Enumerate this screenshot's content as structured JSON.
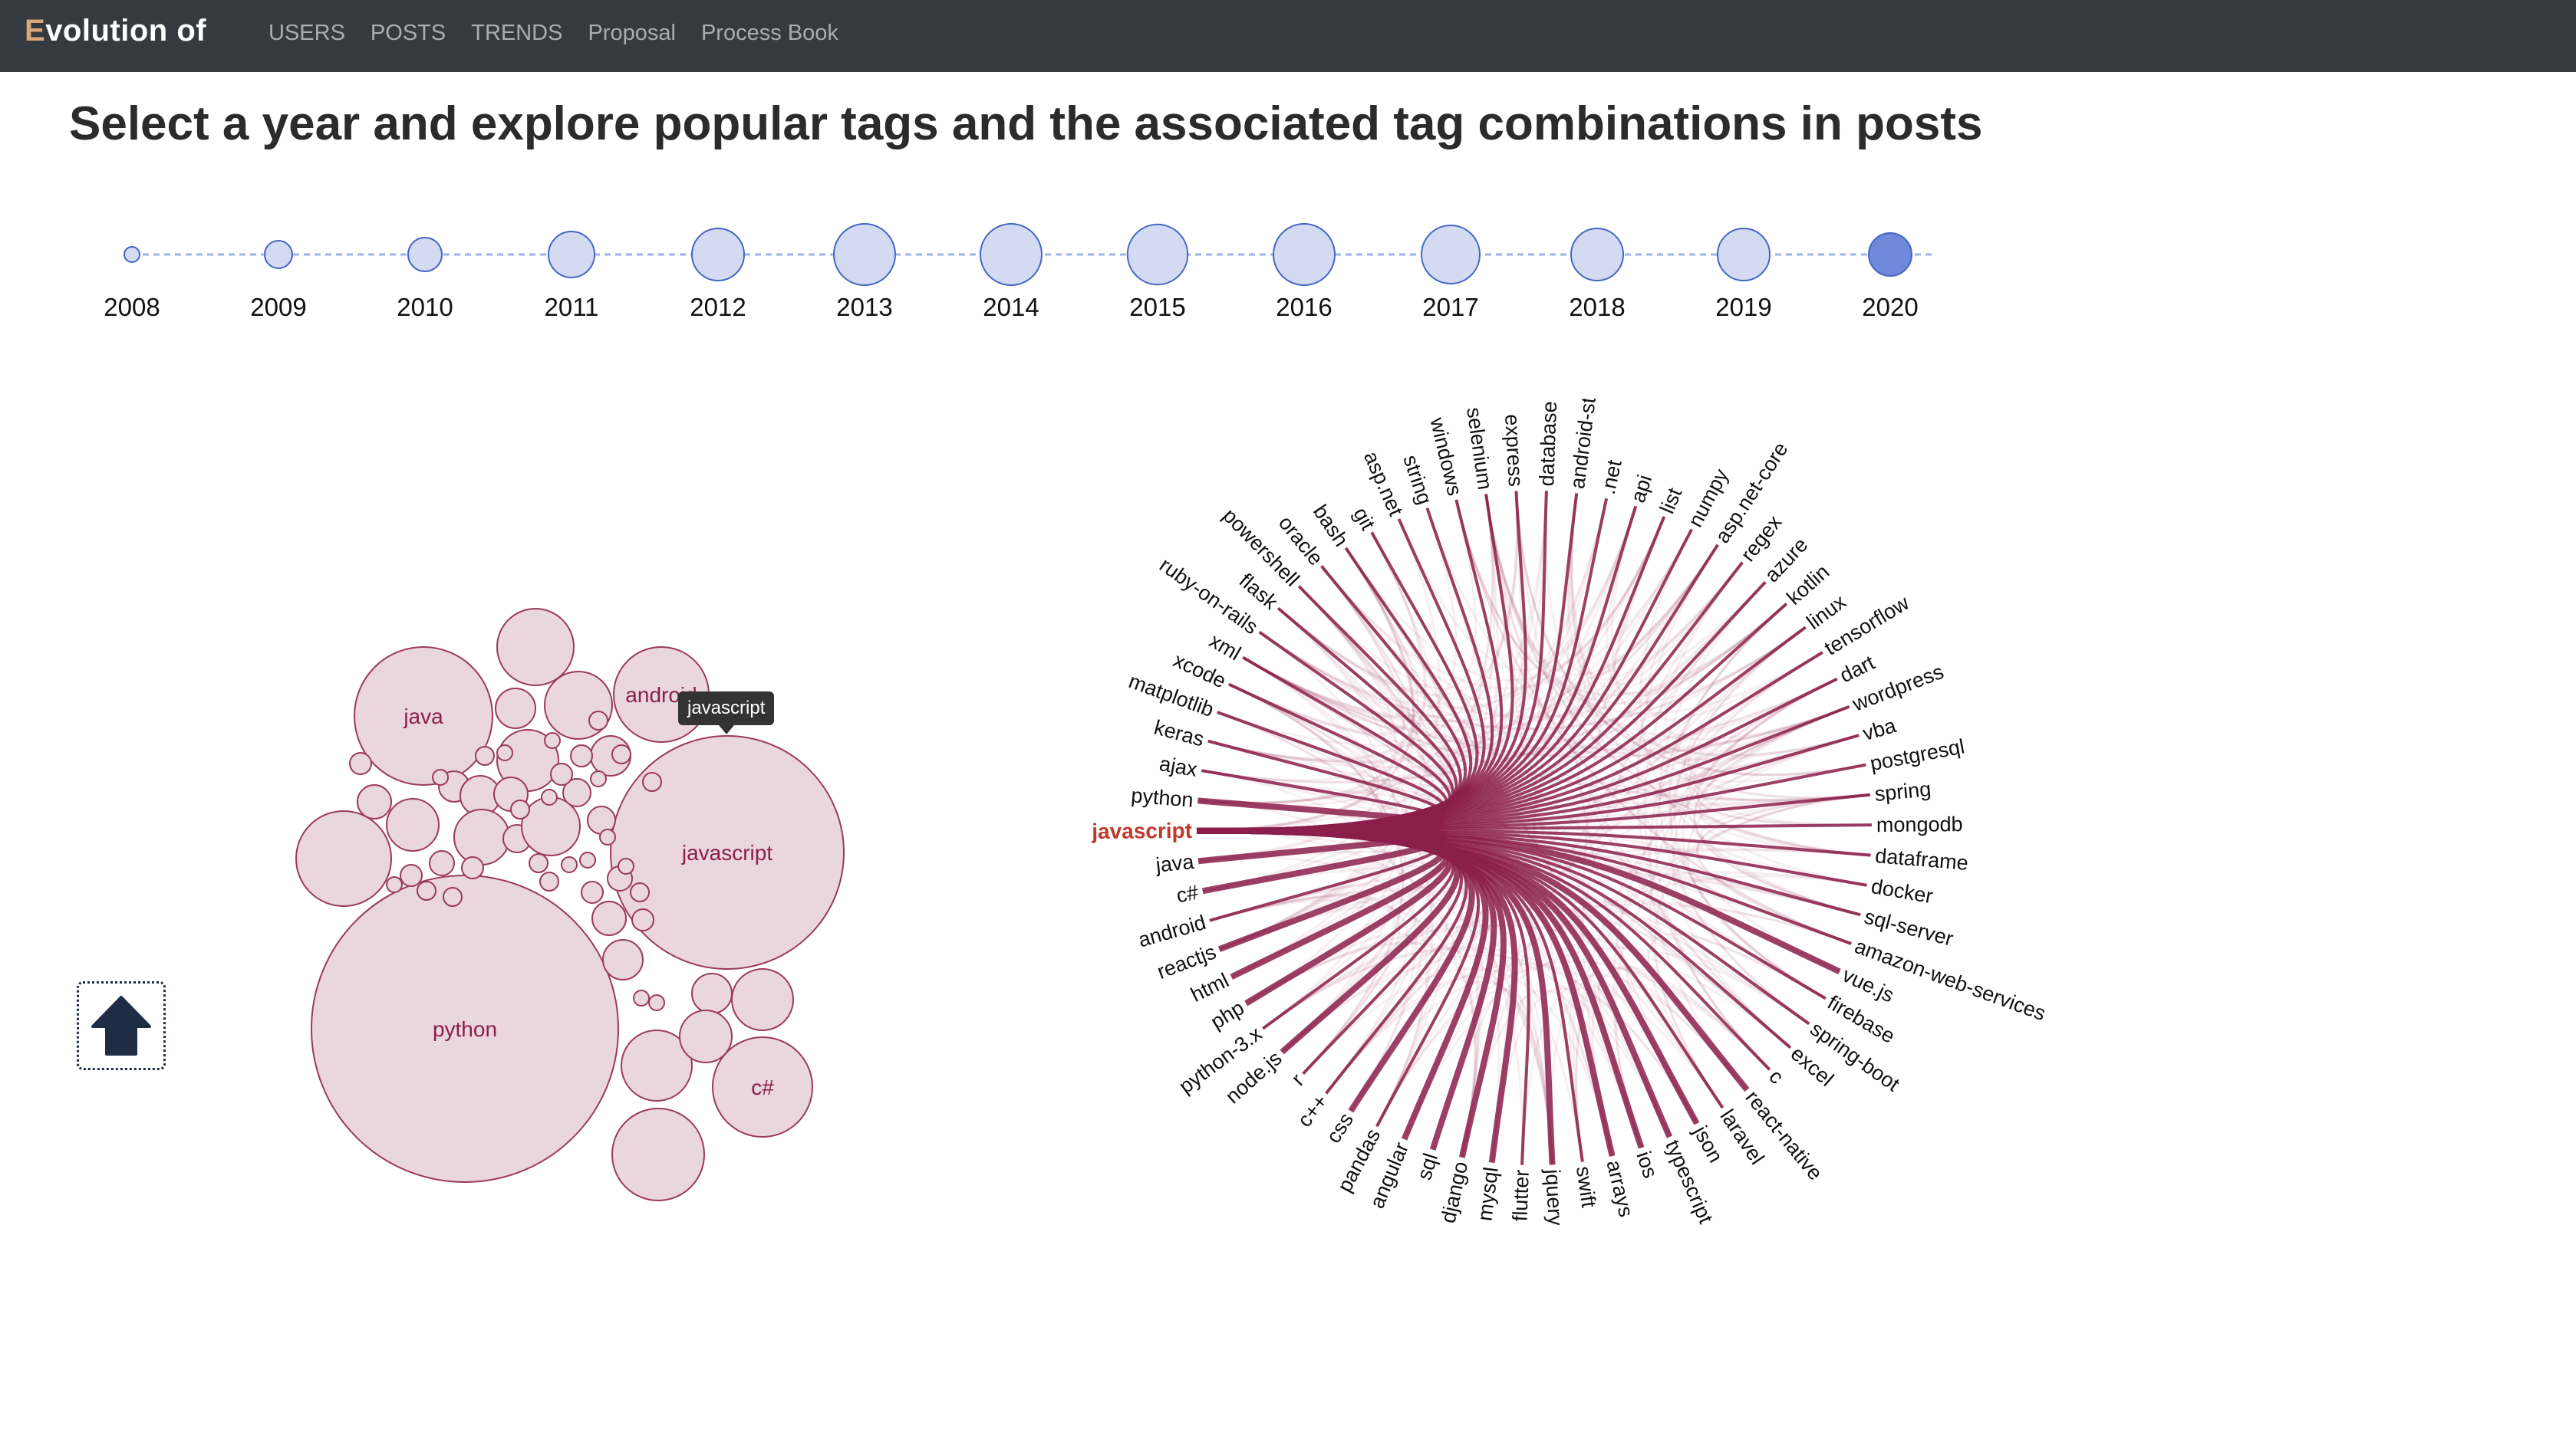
{
  "nav": {
    "brand": "Evolution of",
    "links": [
      "USERS",
      "POSTS",
      "TRENDS",
      "Proposal",
      "Process Book"
    ]
  },
  "heading": "Select a year and explore popular tags and the associated tag combinations in posts",
  "timeline": {
    "years": [
      "2008",
      "2009",
      "2010",
      "2011",
      "2012",
      "2013",
      "2014",
      "2015",
      "2016",
      "2017",
      "2018",
      "2019",
      "2020"
    ],
    "relative_activity": [
      0.25,
      0.45,
      0.55,
      0.75,
      0.85,
      1.0,
      1.0,
      0.98,
      1.0,
      0.95,
      0.85,
      0.85,
      0.7
    ],
    "selected_year": "2020"
  },
  "tooltip": "javascript",
  "packing": {
    "labeled": [
      {
        "label": "python",
        "relative_size": 1.0
      },
      {
        "label": "javascript",
        "relative_size": 0.75
      },
      {
        "label": "java",
        "relative_size": 0.45
      },
      {
        "label": "android",
        "relative_size": 0.3
      },
      {
        "label": "c#",
        "relative_size": 0.33
      }
    ]
  },
  "chord": {
    "selected_tag": "javascript",
    "tags": [
      "javascript",
      "python",
      "ajax",
      "keras",
      "matplotlib",
      "xcode",
      "xml",
      "ruby-on-rails",
      "flask",
      "powershell",
      "oracle",
      "bash",
      "git",
      "asp.net",
      "string",
      "windows",
      "selenium",
      "express",
      "database",
      "android-studio",
      ".net",
      "api",
      "list",
      "numpy",
      "asp.net-core",
      "regex",
      "azure",
      "kotlin",
      "linux",
      "tensorflow",
      "dart",
      "wordpress",
      "vba",
      "postgresql",
      "spring",
      "mongodb",
      "dataframe",
      "docker",
      "sql-server",
      "amazon-web-services",
      "vue.js",
      "firebase",
      "spring-boot",
      "excel",
      "c",
      "react-native",
      "laravel",
      "json",
      "typescript",
      "ios",
      "arrays",
      "swift",
      "jquery",
      "flutter",
      "mysql",
      "django",
      "sql",
      "angular",
      "pandas",
      "css",
      "c++",
      "r",
      "node.js",
      "python-3.x",
      "php",
      "html",
      "reactjs",
      "android",
      "c#",
      "java"
    ]
  },
  "colors": {
    "navbar": "#343a40",
    "brand_accent": "#d9a77a",
    "timeline_fill": "#d3daf2",
    "timeline_stroke": "#4566c4",
    "timeline_selected": "#7088d9",
    "bubble_fill": "#ead6dd",
    "bubble_stroke": "#9b3a5a",
    "chord": "#8b1e4a",
    "selected_label": "#c0392b"
  }
}
